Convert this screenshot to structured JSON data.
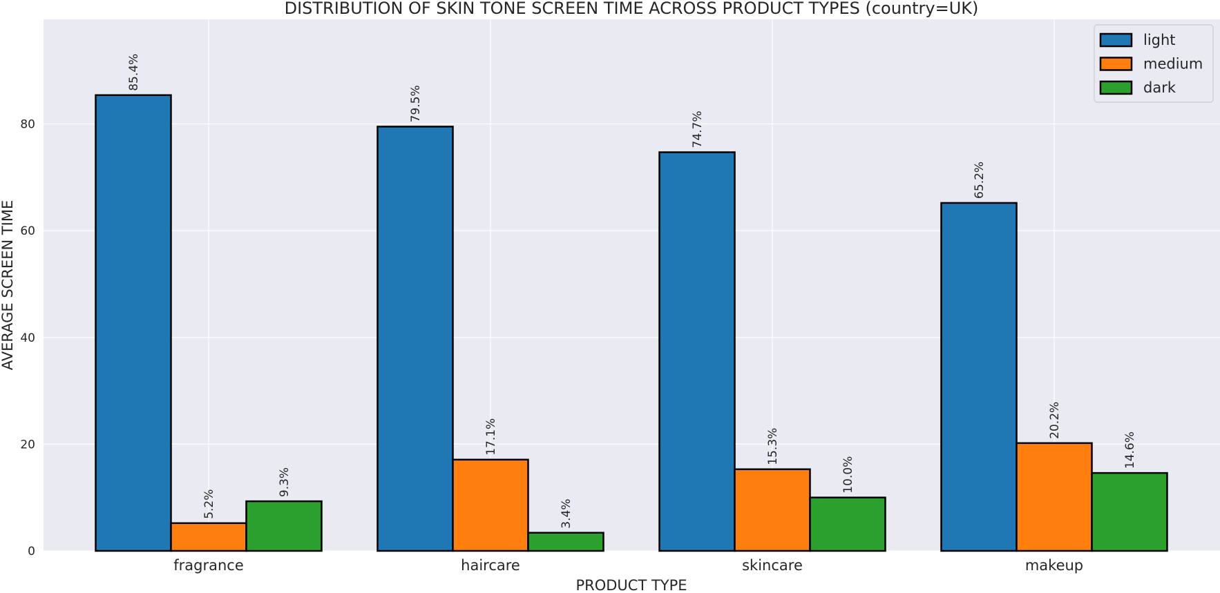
{
  "chart_data": {
    "type": "bar",
    "title": "DISTRIBUTION OF SKIN TONE SCREEN TIME ACROSS PRODUCT TYPES (country=UK)",
    "xlabel": "PRODUCT TYPE",
    "ylabel": "AVERAGE SCREEN TIME",
    "categories": [
      "fragrance",
      "haircare",
      "skincare",
      "makeup"
    ],
    "series": [
      {
        "name": "light",
        "color": "#1f77b4",
        "values": [
          85.4,
          79.5,
          74.7,
          65.2
        ],
        "labels": [
          "85.4%",
          "79.5%",
          "74.7%",
          "65.2%"
        ]
      },
      {
        "name": "medium",
        "color": "#ff7f0e",
        "values": [
          5.2,
          17.1,
          15.3,
          20.2
        ],
        "labels": [
          "5.2%",
          "17.1%",
          "15.3%",
          "20.2%"
        ]
      },
      {
        "name": "dark",
        "color": "#2ca02c",
        "values": [
          9.3,
          3.4,
          10.0,
          14.6
        ],
        "labels": [
          "9.3%",
          "3.4%",
          "10.0%",
          "14.6%"
        ]
      }
    ],
    "ylim": [
      0,
      99.6
    ],
    "yticks": [
      0,
      20,
      40,
      60,
      80
    ],
    "grid": true,
    "legend": "top-right",
    "background": "#eaeaf2"
  }
}
